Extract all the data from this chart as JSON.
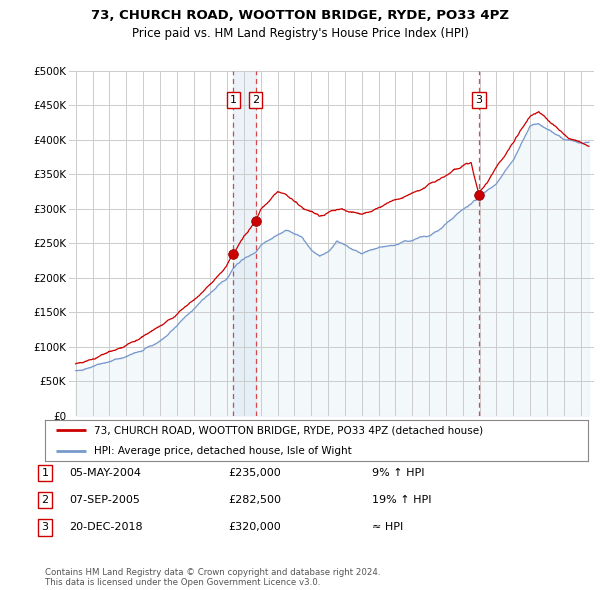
{
  "title": "73, CHURCH ROAD, WOOTTON BRIDGE, RYDE, PO33 4PZ",
  "subtitle": "Price paid vs. HM Land Registry's House Price Index (HPI)",
  "property_line_color": "#cc0000",
  "hpi_line_color": "#7799cc",
  "hpi_fill_color": "#d8e8f5",
  "sale_band_color": "#d8e8f5",
  "background_color": "#ffffff",
  "grid_color": "#cccccc",
  "ylim": [
    0,
    500000
  ],
  "yticks": [
    0,
    50000,
    100000,
    150000,
    200000,
    250000,
    300000,
    350000,
    400000,
    450000,
    500000
  ],
  "ytick_labels": [
    "£0",
    "£50K",
    "£100K",
    "£150K",
    "£200K",
    "£250K",
    "£300K",
    "£350K",
    "£400K",
    "£450K",
    "£500K"
  ],
  "sale_year_floats": [
    2004.37,
    2005.69,
    2018.97
  ],
  "sale_prices": [
    235000,
    282500,
    320000
  ],
  "sale_labels": [
    "1",
    "2",
    "3"
  ],
  "legend_property": "73, CHURCH ROAD, WOOTTON BRIDGE, RYDE, PO33 4PZ (detached house)",
  "legend_hpi": "HPI: Average price, detached house, Isle of Wight",
  "table_rows": [
    {
      "num": "1",
      "date": "05-MAY-2004",
      "price": "£235,000",
      "rel": "9% ↑ HPI"
    },
    {
      "num": "2",
      "date": "07-SEP-2005",
      "price": "£282,500",
      "rel": "19% ↑ HPI"
    },
    {
      "num": "3",
      "date": "20-DEC-2018",
      "price": "£320,000",
      "rel": "≈ HPI"
    }
  ],
  "footer": "Contains HM Land Registry data © Crown copyright and database right 2024.\nThis data is licensed under the Open Government Licence v3.0.",
  "vline_color": "#cc0000"
}
